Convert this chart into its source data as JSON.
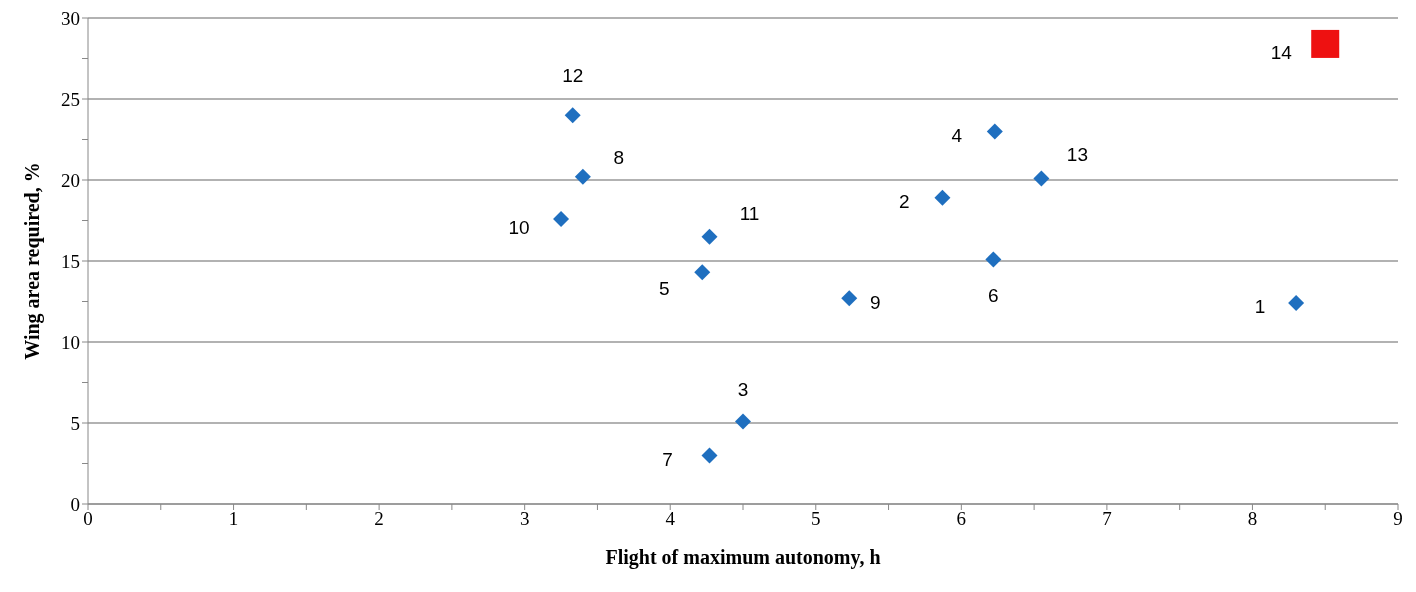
{
  "chart_data": {
    "type": "scatter",
    "xlabel": "Flight of maximum autonomy, h",
    "ylabel": "Wing area required, %",
    "xlim": [
      0,
      9
    ],
    "ylim": [
      0,
      30
    ],
    "xticks": [
      0,
      {
        "value": 0.5,
        "label": null
      },
      1,
      {
        "value": 1.5,
        "label": null
      },
      2,
      {
        "value": 2.5,
        "label": null
      },
      3,
      {
        "value": 3.5,
        "label": null
      },
      4,
      {
        "value": 4.5,
        "label": null
      },
      5,
      {
        "value": 5.5,
        "label": null
      },
      6,
      {
        "value": 6.5,
        "label": null
      },
      7,
      {
        "value": 7.5,
        "label": null
      },
      8,
      {
        "value": 8.5,
        "label": null
      },
      9
    ],
    "yticks": [
      0,
      {
        "value": 2.5,
        "label": null
      },
      5,
      {
        "value": 7.5,
        "label": null
      },
      10,
      {
        "value": 12.5,
        "label": null
      },
      15,
      {
        "value": 17.5,
        "label": null
      },
      20,
      {
        "value": 22.5,
        "label": null
      },
      25,
      {
        "value": 27.5,
        "label": null
      },
      30
    ],
    "grid": "y",
    "legend": false,
    "series": [
      {
        "color": "#1f6fbf",
        "marker": "diamond",
        "x": [
          8.3,
          5.87,
          4.5,
          6.23,
          4.22,
          6.22,
          4.27,
          3.4,
          5.23,
          3.25,
          4.27,
          3.33,
          6.55
        ],
        "values": [
          12.4,
          18.9,
          5.1,
          23.0,
          14.3,
          15.1,
          3.0,
          20.2,
          12.7,
          17.6,
          16.5,
          24.0,
          20.1
        ]
      },
      {
        "color": "#ee1111",
        "marker": "square",
        "x": [
          8.5
        ],
        "values": [
          28.4
        ]
      }
    ],
    "annotations": [
      {
        "text": "1",
        "x": 8.3,
        "y": 12.4
      },
      {
        "text": "2",
        "x": 5.87,
        "y": 18.9
      },
      {
        "text": "3",
        "x": 4.5,
        "y": 5.1
      },
      {
        "text": "4",
        "x": 6.23,
        "y": 23.0
      },
      {
        "text": "5",
        "x": 4.22,
        "y": 14.3
      },
      {
        "text": "6",
        "x": 6.22,
        "y": 15.1
      },
      {
        "text": "7",
        "x": 4.27,
        "y": 3.0
      },
      {
        "text": "8",
        "x": 3.4,
        "y": 20.2
      },
      {
        "text": "9",
        "x": 5.23,
        "y": 12.7
      },
      {
        "text": "10",
        "x": 3.25,
        "y": 17.6
      },
      {
        "text": "11",
        "x": 4.27,
        "y": 16.5
      },
      {
        "text": "12",
        "x": 3.33,
        "y": 24.0
      },
      {
        "text": "13",
        "x": 6.55,
        "y": 20.1
      },
      {
        "text": "14",
        "x": 8.5,
        "y": 28.4
      }
    ]
  }
}
